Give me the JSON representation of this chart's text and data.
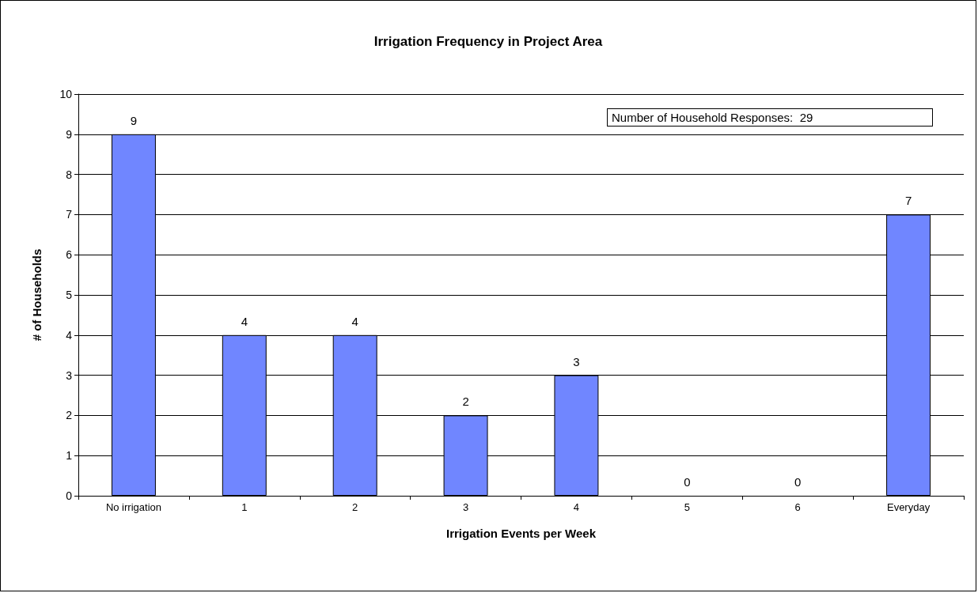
{
  "chart_data": {
    "type": "bar",
    "title": "Irrigation Frequency in Project Area",
    "xlabel": "Irrigation Events per Week",
    "ylabel": "# of Households",
    "categories": [
      "No irrigation",
      "1",
      "2",
      "3",
      "4",
      "5",
      "6",
      "Everyday"
    ],
    "values": [
      9,
      4,
      4,
      2,
      3,
      0,
      0,
      7
    ],
    "color": "#7086ff",
    "ylim": [
      0,
      10
    ],
    "yticks": [
      0,
      1,
      2,
      3,
      4,
      5,
      6,
      7,
      8,
      9,
      10
    ],
    "grid": "y",
    "data_labels": true,
    "annotations": [
      "Number of Household Responses:  29"
    ]
  }
}
